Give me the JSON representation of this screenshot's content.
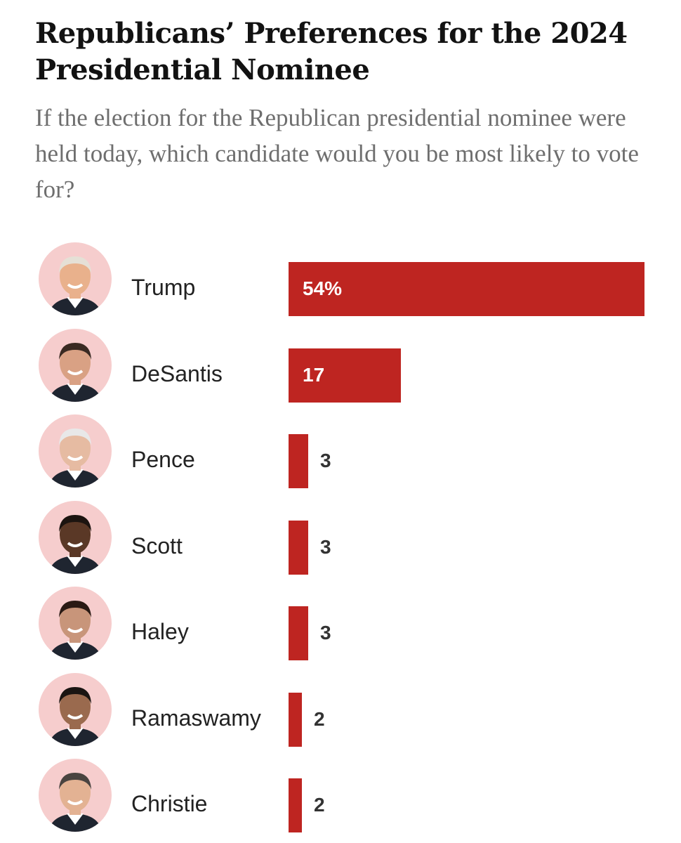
{
  "chart_data": {
    "type": "bar",
    "orientation": "horizontal",
    "title": "Republicans’ Preferences for the 2024 Presidential Nominee",
    "subtitle": "If the election for the Republican presidential nominee were held today, which candidate would you be most likely to vote for?",
    "categories": [
      "Trump",
      "DeSantis",
      "Pence",
      "Scott",
      "Haley",
      "Ramaswamy",
      "Christie"
    ],
    "values": [
      54,
      17,
      3,
      3,
      3,
      2,
      2
    ],
    "value_labels": [
      "54%",
      "17",
      "3",
      "3",
      "3",
      "2",
      "2"
    ],
    "xlim": [
      0,
      54
    ],
    "unit": "%",
    "grid": false,
    "bar_color": "#be2521",
    "avatar_bg_color": "#f6cdcd"
  }
}
